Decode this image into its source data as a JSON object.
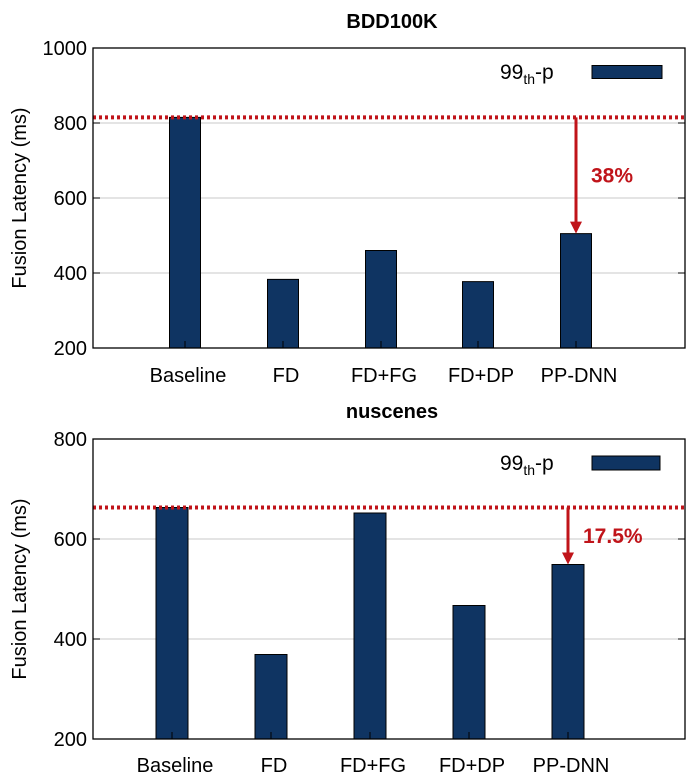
{
  "chart_data": [
    {
      "type": "bar",
      "title": "BDD100K",
      "ylabel": "Fusion Latency (ms)",
      "xlabel": "",
      "ylim": [
        200,
        1000
      ],
      "yticks": [
        200,
        400,
        600,
        800,
        1000
      ],
      "categories": [
        "Baseline",
        "FD",
        "FD+FG",
        "FD+DP",
        "PP-DNN"
      ],
      "series": [
        {
          "name_main": "99",
          "name_sub": "th",
          "name_tail": "-p",
          "values": [
            815,
            383,
            460,
            377,
            505
          ]
        }
      ],
      "legend_position": "top-right",
      "reference_line": 815,
      "annotation": {
        "text": "38%",
        "from": 815,
        "to": 505,
        "category": "PP-DNN"
      },
      "grid": true,
      "bar_color": "#0f3462",
      "annotation_color": "#c0141a"
    },
    {
      "type": "bar",
      "title": "nuscenes",
      "ylabel": "Fusion Latency (ms)",
      "xlabel": "",
      "ylim": [
        200,
        800
      ],
      "yticks": [
        200,
        400,
        600,
        800
      ],
      "categories": [
        "Baseline",
        "FD",
        "FD+FG",
        "FD+DP",
        "PP-DNN"
      ],
      "series": [
        {
          "name_main": "99",
          "name_sub": "th",
          "name_tail": "-p",
          "values": [
            663,
            369,
            652,
            467,
            549
          ]
        }
      ],
      "legend_position": "top-right",
      "reference_line": 663,
      "annotation": {
        "text": "17.5%",
        "from": 663,
        "to": 549,
        "category": "PP-DNN"
      },
      "grid": true,
      "bar_color": "#0f3462",
      "annotation_color": "#c0141a"
    }
  ]
}
